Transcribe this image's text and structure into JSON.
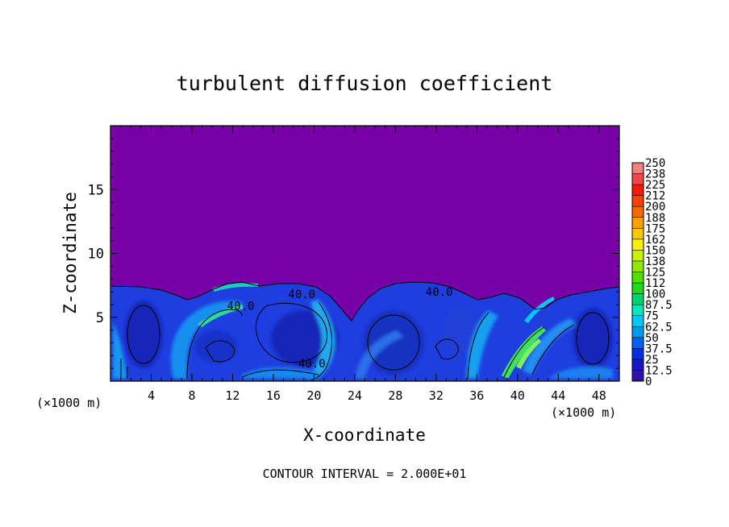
{
  "chart_data": {
    "type": "heatmap",
    "title": "turbulent diffusion coefficient",
    "xlabel": "X-coordinate",
    "ylabel": "Z-coordinate",
    "x_unit": "(×1000 m)",
    "x_unit_right": "(×1000 m)",
    "xlim": [
      0,
      50
    ],
    "ylim": [
      0,
      20
    ],
    "x_ticks": [
      4,
      8,
      12,
      16,
      20,
      24,
      28,
      32,
      36,
      40,
      44,
      48
    ],
    "y_ticks": [
      5,
      10,
      15
    ],
    "contour_note": "CONTOUR INTERVAL = 2.000E+01",
    "contour_labels": [
      {
        "text": "40.0",
        "x": 18.8,
        "z": 6.8
      },
      {
        "text": "40.0",
        "x": 32.3,
        "z": 7.0
      },
      {
        "text": "40.0",
        "x": 12.8,
        "z": 5.9
      },
      {
        "text": "40.0",
        "x": 19.8,
        "z": 1.4
      }
    ],
    "colorbar": {
      "levels": [
        "250",
        "238",
        "225",
        "212",
        "200",
        "188",
        "175",
        "162",
        "150",
        "138",
        "125",
        "112",
        "100",
        "87.5",
        "75",
        "62.5",
        "50",
        "37.5",
        "25",
        "12.5",
        "0"
      ],
      "colors": [
        "#f08080",
        "#f04848",
        "#f81800",
        "#f84000",
        "#f86800",
        "#f8a000",
        "#f8c800",
        "#f8f000",
        "#c8f000",
        "#90e800",
        "#50e000",
        "#20d820",
        "#00d070",
        "#00e8b8",
        "#00c8f0",
        "#0098f0",
        "#0060f0",
        "#0030e0",
        "#1818c0",
        "#3010a8",
        "#7800a8"
      ]
    },
    "regions": {
      "background_color": "#7800a8",
      "turbulent_layer_top_km": 7.5,
      "mean_value": 45
    }
  }
}
